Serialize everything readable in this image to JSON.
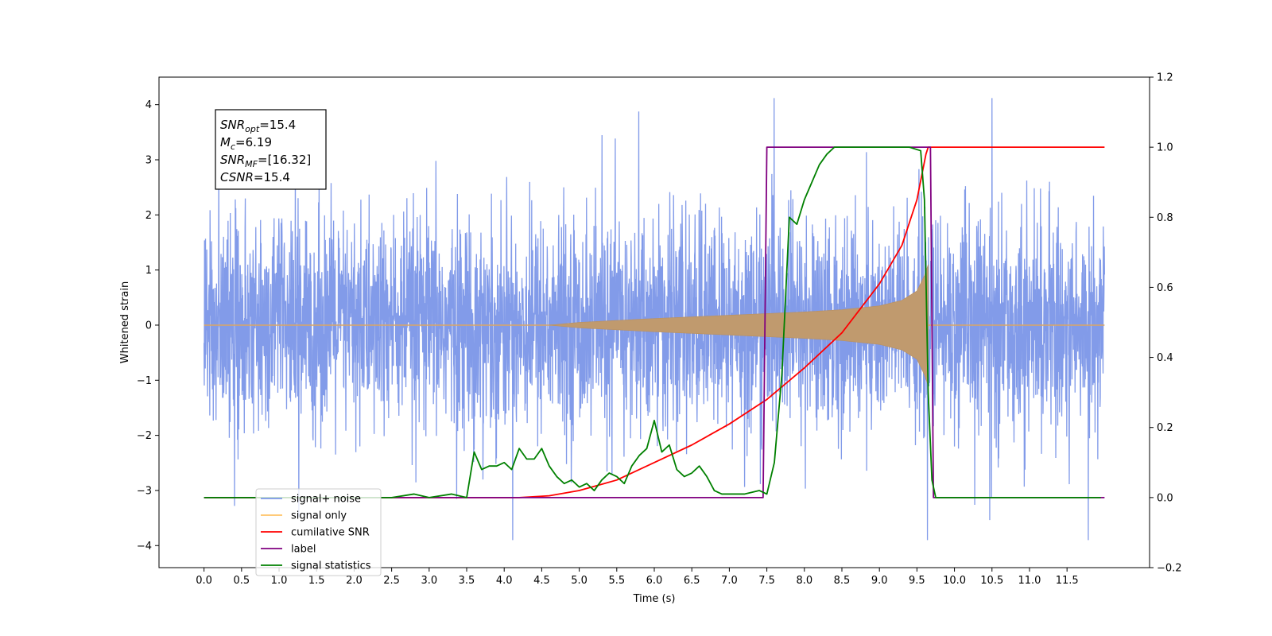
{
  "chart_data": {
    "type": "line",
    "xlabel": "Time (s)",
    "ylabel": "Whitened strain",
    "xlim": [
      -0.6,
      12.6
    ],
    "ylim_left": [
      -4.4,
      4.5
    ],
    "ylim_right": [
      -0.2,
      1.2
    ],
    "x_ticks": [
      "0.0",
      "0.5",
      "1.0",
      "1.5",
      "2.0",
      "2.5",
      "3.0",
      "3.5",
      "4.0",
      "4.5",
      "5.0",
      "5.5",
      "6.0",
      "6.5",
      "7.0",
      "7.5",
      "8.0",
      "8.5",
      "9.0",
      "9.5",
      "10.0",
      "10.5",
      "11.0",
      "11.5"
    ],
    "y_ticks_left": [
      "−4",
      "−3",
      "−2",
      "−1",
      "0",
      "1",
      "2",
      "3",
      "4"
    ],
    "y_ticks_right": [
      "−0.2",
      "0.0",
      "0.2",
      "0.4",
      "0.6",
      "0.8",
      "1.0",
      "1.2"
    ],
    "annotation": {
      "snr_opt": {
        "base": "SNR",
        "sub": "opt",
        "value": "=15.4"
      },
      "mc": {
        "base": "M",
        "sub": "c",
        "value": "=6.19"
      },
      "snr_mf": {
        "base": "SNR",
        "sub": "MF",
        "value": "=[16.32]"
      },
      "csnr": {
        "base": "CSNR",
        "sub": "",
        "value": "=15.4"
      }
    },
    "legend": {
      "position": "lower-left",
      "entries": [
        {
          "label": "signal+ noise",
          "color": "#7b96e8"
        },
        {
          "label": "signal only",
          "color": "#ffc266"
        },
        {
          "label": "cumilative SNR",
          "color": "#ff0000"
        },
        {
          "label": "label",
          "color": "#800080"
        },
        {
          "label": "signal statistics",
          "color": "#008000"
        }
      ]
    },
    "series": [
      {
        "name": "signal+ noise",
        "axis": "left",
        "color": "#7b96e8",
        "x_range": [
          0.0,
          12.0
        ],
        "std": 0.95,
        "peak_max": 4.12,
        "peak_min": -3.9
      },
      {
        "name": "signal only",
        "axis": "left",
        "color": "#ffc266",
        "chirp_start": 4.6,
        "chirp_end": 9.65,
        "envelope": {
          "t": [
            4.6,
            5.0,
            6.0,
            7.0,
            8.0,
            8.5,
            9.0,
            9.3,
            9.5,
            9.6,
            9.65
          ],
          "amp": [
            0.0,
            0.05,
            0.12,
            0.18,
            0.24,
            0.28,
            0.35,
            0.45,
            0.62,
            0.9,
            1.1
          ]
        }
      },
      {
        "name": "cumilative SNR",
        "axis": "right",
        "x": [
          0,
          4.2,
          4.6,
          5.0,
          5.5,
          6.0,
          6.5,
          7.0,
          7.5,
          8.0,
          8.5,
          9.0,
          9.3,
          9.5,
          9.62,
          9.65,
          10.0,
          12.0
        ],
        "y": [
          0.0,
          0.0,
          0.005,
          0.02,
          0.05,
          0.1,
          0.15,
          0.21,
          0.28,
          0.37,
          0.47,
          0.61,
          0.72,
          0.85,
          0.98,
          1.0,
          1.0,
          1.0
        ]
      },
      {
        "name": "label",
        "axis": "right",
        "x": [
          0,
          7.45,
          7.5,
          9.68,
          9.72,
          12.0
        ],
        "y": [
          0,
          0,
          1,
          1,
          0,
          0
        ]
      },
      {
        "name": "signal statistics",
        "axis": "right",
        "x": [
          0,
          2.5,
          2.8,
          3.0,
          3.3,
          3.5,
          3.6,
          3.7,
          3.8,
          3.9,
          4.0,
          4.1,
          4.2,
          4.3,
          4.4,
          4.5,
          4.6,
          4.7,
          4.8,
          4.9,
          5.0,
          5.1,
          5.2,
          5.3,
          5.4,
          5.5,
          5.6,
          5.7,
          5.8,
          5.9,
          6.0,
          6.1,
          6.2,
          6.3,
          6.4,
          6.5,
          6.6,
          6.7,
          6.8,
          6.9,
          7.0,
          7.2,
          7.4,
          7.5,
          7.6,
          7.7,
          7.8,
          7.9,
          8.0,
          8.1,
          8.2,
          8.3,
          8.4,
          8.5,
          8.6,
          8.8,
          9.0,
          9.2,
          9.4,
          9.55,
          9.6,
          9.65,
          9.7,
          9.75,
          9.8,
          10.0,
          11.0,
          11.95
        ],
        "y": [
          0,
          0,
          0.01,
          0,
          0.01,
          0,
          0.13,
          0.08,
          0.09,
          0.09,
          0.1,
          0.08,
          0.14,
          0.11,
          0.11,
          0.14,
          0.09,
          0.06,
          0.04,
          0.05,
          0.03,
          0.04,
          0.02,
          0.05,
          0.07,
          0.06,
          0.04,
          0.09,
          0.12,
          0.14,
          0.22,
          0.13,
          0.15,
          0.08,
          0.06,
          0.07,
          0.09,
          0.06,
          0.02,
          0.01,
          0.01,
          0.01,
          0.02,
          0.01,
          0.1,
          0.35,
          0.8,
          0.78,
          0.85,
          0.9,
          0.95,
          0.98,
          1.0,
          1.0,
          1.0,
          1.0,
          1.0,
          1.0,
          1.0,
          0.99,
          0.85,
          0.3,
          0.05,
          0.0,
          0.0,
          0.0,
          0.0,
          0.0
        ]
      }
    ]
  }
}
